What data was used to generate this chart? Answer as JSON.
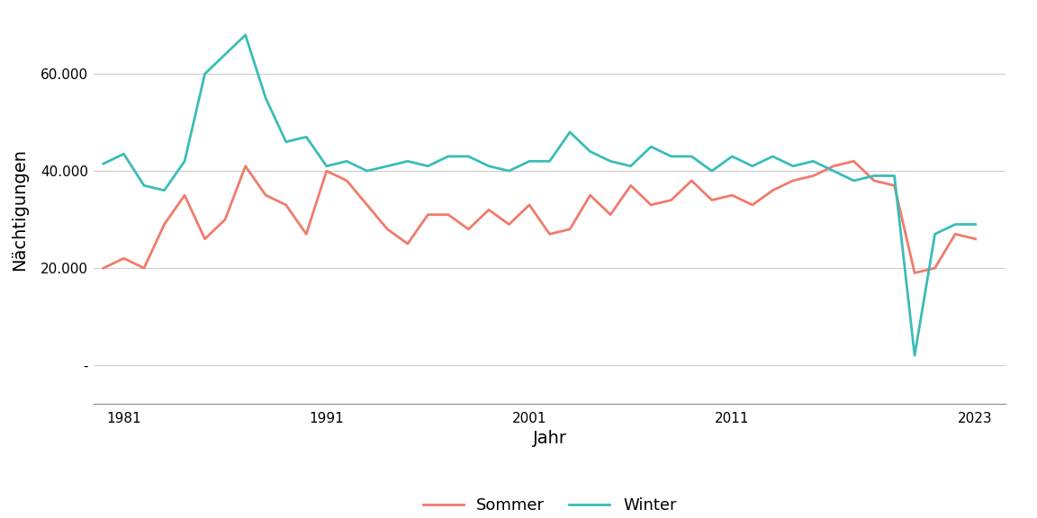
{
  "years": [
    1980,
    1981,
    1982,
    1983,
    1984,
    1985,
    1986,
    1987,
    1988,
    1989,
    1990,
    1991,
    1992,
    1993,
    1994,
    1995,
    1996,
    1997,
    1998,
    1999,
    2000,
    2001,
    2002,
    2003,
    2004,
    2005,
    2006,
    2007,
    2008,
    2009,
    2010,
    2011,
    2012,
    2013,
    2014,
    2015,
    2016,
    2017,
    2018,
    2019,
    2020,
    2021,
    2022,
    2023
  ],
  "sommer": [
    20000,
    22000,
    20000,
    29000,
    35000,
    26000,
    30000,
    41000,
    35000,
    33000,
    27000,
    40000,
    38000,
    33000,
    28000,
    25000,
    31000,
    31000,
    28000,
    32000,
    29000,
    33000,
    27000,
    28000,
    35000,
    31000,
    37000,
    33000,
    34000,
    38000,
    34000,
    35000,
    33000,
    36000,
    38000,
    39000,
    41000,
    42000,
    38000,
    37000,
    19000,
    20000,
    27000,
    26000
  ],
  "winter": [
    41500,
    43500,
    37000,
    36000,
    42000,
    60000,
    64000,
    68000,
    55000,
    46000,
    47000,
    41000,
    42000,
    40000,
    41000,
    42000,
    41000,
    43000,
    43000,
    41000,
    40000,
    42000,
    42000,
    48000,
    44000,
    42000,
    41000,
    45000,
    43000,
    43000,
    40000,
    43000,
    41000,
    43000,
    41000,
    42000,
    40000,
    38000,
    39000,
    39000,
    2000,
    27000,
    29000,
    29000
  ],
  "sommer_color": "#F07B6B",
  "winter_color": "#3BBCB8",
  "xlabel": "Jahr",
  "ylabel": "Nächtigungen",
  "xlabel_fontsize": 14,
  "ylabel_fontsize": 14,
  "tick_fontsize": 11,
  "legend_fontsize": 13,
  "line_width": 2.0,
  "background_color": "#FFFFFF",
  "grid_color": "#CCCCCC",
  "yticks": [
    0,
    20000,
    40000,
    60000
  ],
  "ytick_labels": [
    "-",
    "20.000",
    "40.000",
    "60.000"
  ],
  "xticks": [
    1981,
    1991,
    2001,
    2011,
    2023
  ],
  "xlim": [
    1979.5,
    2024.5
  ],
  "ylim": [
    -8000,
    72000
  ]
}
